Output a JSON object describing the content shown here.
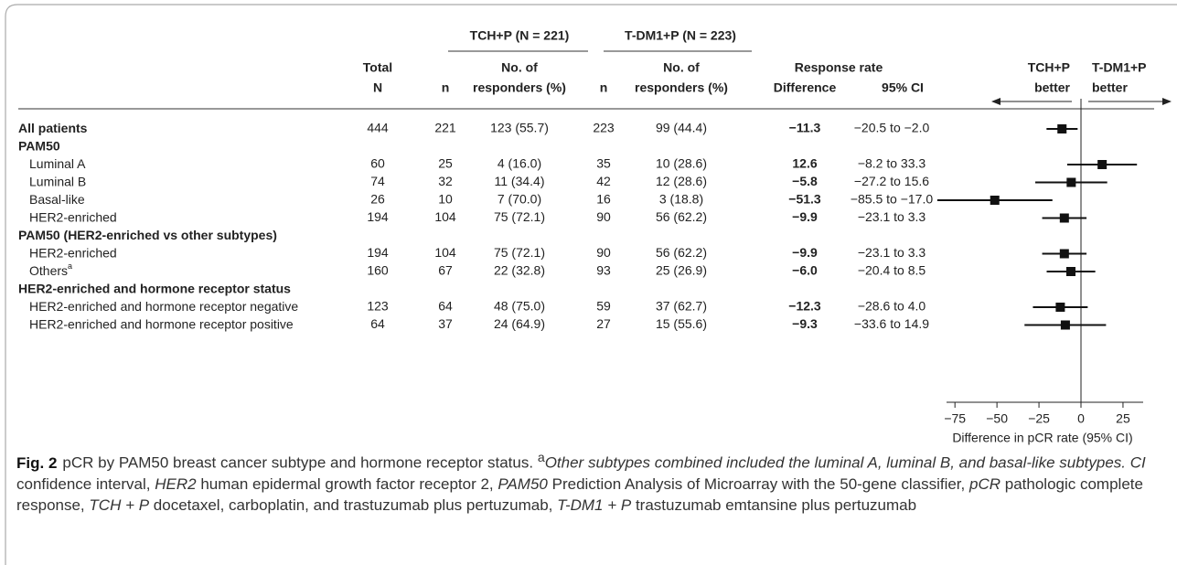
{
  "headers": {
    "group1": "TCH+P (N = 221)",
    "group2": "T-DM1+P (N = 223)",
    "cols": [
      [
        "Total",
        "N"
      ],
      [
        "n"
      ],
      [
        "No. of",
        "responders (%)"
      ],
      [
        "n"
      ],
      [
        "No. of",
        "responders (%)"
      ]
    ],
    "response_rate": "Response rate",
    "difference": "Difference",
    "ci": "95% CI",
    "favor_left": [
      "TCH+P",
      "better"
    ],
    "favor_right": [
      "T-DM1+P",
      "better"
    ]
  },
  "rows": [
    {
      "label": "All patients",
      "bold": true,
      "total": "444",
      "n1": "221",
      "resp1": "123 (55.7)",
      "n2": "223",
      "resp2": "99 (44.4)",
      "difference": {
        "value": -11.3,
        "label": "−11.3"
      },
      "ci": {
        "low": -20.5,
        "high": -2.0,
        "label": "−20.5 to −2.0"
      }
    },
    {
      "label": "PAM50",
      "bold": true
    },
    {
      "label": "Luminal A",
      "total": "60",
      "n1": "25",
      "resp1": "4 (16.0)",
      "n2": "35",
      "resp2": "10 (28.6)",
      "difference": {
        "value": 12.6,
        "label": "12.6"
      },
      "ci": {
        "low": -8.2,
        "high": 33.3,
        "label": "−8.2 to 33.3"
      }
    },
    {
      "label": "Luminal B",
      "total": "74",
      "n1": "32",
      "resp1": "11 (34.4)",
      "n2": "42",
      "resp2": "12 (28.6)",
      "difference": {
        "value": -5.8,
        "label": "−5.8"
      },
      "ci": {
        "low": -27.2,
        "high": 15.6,
        "label": "−27.2 to 15.6"
      }
    },
    {
      "label": "Basal-like",
      "total": "26",
      "n1": "10",
      "resp1": "7 (70.0)",
      "n2": "16",
      "resp2": "3 (18.8)",
      "difference": {
        "value": -51.3,
        "label": "−51.3"
      },
      "ci": {
        "low": -85.5,
        "high": -17.0,
        "label": "−85.5 to −17.0"
      }
    },
    {
      "label": "HER2-enriched",
      "total": "194",
      "n1": "104",
      "resp1": "75 (72.1)",
      "n2": "90",
      "resp2": "56 (62.2)",
      "difference": {
        "value": -9.9,
        "label": "−9.9"
      },
      "ci": {
        "low": -23.1,
        "high": 3.3,
        "label": "−23.1 to 3.3"
      }
    },
    {
      "label": "PAM50 (HER2-enriched vs other subtypes)",
      "bold": true
    },
    {
      "label": "HER2-enriched",
      "total": "194",
      "n1": "104",
      "resp1": "75 (72.1)",
      "n2": "90",
      "resp2": "56 (62.2)",
      "difference": {
        "value": -9.9,
        "label": "−9.9"
      },
      "ci": {
        "low": -23.1,
        "high": 3.3,
        "label": "−23.1 to 3.3"
      }
    },
    {
      "label": "Others",
      "superscript": "a",
      "total": "160",
      "n1": "67",
      "resp1": "22 (32.8)",
      "n2": "93",
      "resp2": "25 (26.9)",
      "difference": {
        "value": -6.0,
        "label": "−6.0"
      },
      "ci": {
        "low": -20.4,
        "high": 8.5,
        "label": "−20.4 to 8.5"
      }
    },
    {
      "label": "HER2-enriched and hormone receptor status",
      "bold": true
    },
    {
      "label": "HER2-enriched and hormone receptor negative",
      "total": "123",
      "n1": "64",
      "resp1": "48 (75.0)",
      "n2": "59",
      "resp2": "37 (62.7)",
      "difference": {
        "value": -12.3,
        "label": "−12.3"
      },
      "ci": {
        "low": -28.6,
        "high": 4.0,
        "label": "−28.6 to 4.0"
      }
    },
    {
      "label": "HER2-enriched and hormone receptor positive",
      "total": "64",
      "n1": "37",
      "resp1": "24 (64.9)",
      "n2": "27",
      "resp2": "15 (55.6)",
      "difference": {
        "value": -9.3,
        "label": "−9.3"
      },
      "ci": {
        "low": -33.6,
        "high": 14.9,
        "label": "−33.6 to 14.9"
      }
    }
  ],
  "axis": {
    "xlim": [
      -80,
      37
    ],
    "xticks": [
      {
        "value": -75,
        "label": "−75"
      },
      {
        "value": -50,
        "label": "−50"
      },
      {
        "value": -25,
        "label": "−25"
      },
      0,
      25
    ],
    "label": "Difference in pCR rate (95% CI)"
  },
  "caption": {
    "label": "Fig. 2",
    "title": "pCR by PAM50 breast cancer subtype and hormone receptor status.",
    "footnote_mark": "a",
    "footnote": "Other subtypes combined included the luminal A, luminal B, and basal-like subtypes.",
    "abbreviations": [
      {
        "term": "CI",
        "definition": "confidence interval,"
      },
      {
        "term": "HER2",
        "definition": "human epidermal growth factor receptor 2,"
      },
      {
        "term": "PAM50",
        "definition": "Prediction Analysis of Microarray with the 50-gene classifier,"
      },
      {
        "term": "pCR",
        "definition": "pathologic complete response,"
      },
      {
        "term": "TCH + P",
        "definition": "docetaxel, carboplatin, and trastuzumab plus pertuzumab,"
      },
      {
        "term": "T-DM1 + P",
        "definition": "trastuzumab emtansine plus pertuzumab"
      }
    ]
  }
}
